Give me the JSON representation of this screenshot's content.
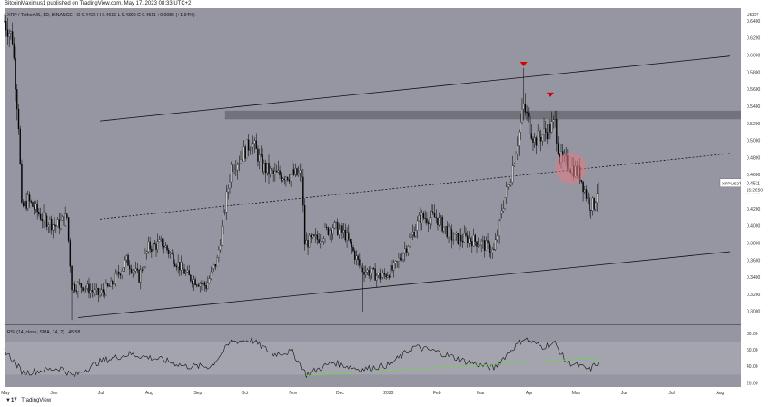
{
  "header": {
    "publisher": "BitcoinMaximus1 published on TradingView.com, May 17, 2023 08:33 UTC+2"
  },
  "legend": {
    "symbol": "XRP / TetherUS, 1D, BINANCE",
    "ohlc": "O 0.4426  H 0.4616  L 0.4390  C 0.4511  +0.0086 (+1.94%)"
  },
  "rsi_legend": {
    "label": "RSI (14, close, SMA, 14, 2)",
    "value": "45.58"
  },
  "price_label": {
    "symbol": "XRPUSDT",
    "price": "0.4511",
    "countdown": "15:26:50"
  },
  "footer": {
    "brand": "TradingView"
  },
  "colors": {
    "pane_bg": "#9596a1",
    "candle": "#000000",
    "resistance_zone": "#6b6c74",
    "marker": "#d50000",
    "circle": "#e57b83",
    "rsi_line": "#111111",
    "rsi_trend": "#6fd14e"
  },
  "chart_data": [
    {
      "type": "candlestick",
      "title": "",
      "y_axis_label": "USDT",
      "y_ticks": [
        "0.6400",
        "0.6200",
        "0.6000",
        "0.5800",
        "0.5600",
        "0.5400",
        "0.5200",
        "0.5000",
        "0.4800",
        "0.4600",
        "0.4400",
        "0.4200",
        "0.4000",
        "0.3800",
        "0.3600",
        "0.3400",
        "0.3200",
        "0.3000"
      ],
      "ylim": [
        0.285,
        0.655
      ],
      "x_ticks": [
        "May",
        "Jun",
        "Jul",
        "Aug",
        "Sep",
        "Oct",
        "Nov",
        "Dec",
        "2023",
        "Feb",
        "Mar",
        "Apr",
        "May",
        "Jun",
        "Jul",
        "Aug"
      ],
      "x_range": [
        "2022-05-01",
        "2023-08-15"
      ],
      "price_path": [
        [
          "2022-05-01",
          0.64
        ],
        [
          "2022-05-06",
          0.62
        ],
        [
          "2022-05-10",
          0.52
        ],
        [
          "2022-05-12",
          0.42
        ],
        [
          "2022-05-16",
          0.43
        ],
        [
          "2022-05-25",
          0.41
        ],
        [
          "2022-06-03",
          0.4
        ],
        [
          "2022-06-10",
          0.41
        ],
        [
          "2022-06-13",
          0.33
        ],
        [
          "2022-06-20",
          0.33
        ],
        [
          "2022-06-30",
          0.32
        ],
        [
          "2022-07-08",
          0.33
        ],
        [
          "2022-07-18",
          0.36
        ],
        [
          "2022-07-26",
          0.34
        ],
        [
          "2022-08-01",
          0.375
        ],
        [
          "2022-08-10",
          0.38
        ],
        [
          "2022-08-18",
          0.36
        ],
        [
          "2022-08-27",
          0.34
        ],
        [
          "2022-09-07",
          0.33
        ],
        [
          "2022-09-14",
          0.36
        ],
        [
          "2022-09-23",
          0.47
        ],
        [
          "2022-09-29",
          0.48
        ],
        [
          "2022-10-06",
          0.5
        ],
        [
          "2022-10-13",
          0.47
        ],
        [
          "2022-10-20",
          0.46
        ],
        [
          "2022-10-31",
          0.46
        ],
        [
          "2022-11-07",
          0.46
        ],
        [
          "2022-11-09",
          0.38
        ],
        [
          "2022-11-17",
          0.385
        ],
        [
          "2022-11-27",
          0.4
        ],
        [
          "2022-12-05",
          0.39
        ],
        [
          "2022-12-15",
          0.35
        ],
        [
          "2022-12-28",
          0.34
        ],
        [
          "2023-01-05",
          0.35
        ],
        [
          "2023-01-14",
          0.38
        ],
        [
          "2023-01-22",
          0.41
        ],
        [
          "2023-02-01",
          0.41
        ],
        [
          "2023-02-12",
          0.385
        ],
        [
          "2023-02-22",
          0.385
        ],
        [
          "2023-03-02",
          0.38
        ],
        [
          "2023-03-10",
          0.37
        ],
        [
          "2023-03-15",
          0.42
        ],
        [
          "2023-03-21",
          0.46
        ],
        [
          "2023-03-29",
          0.54
        ],
        [
          "2023-04-05",
          0.5
        ],
        [
          "2023-04-12",
          0.51
        ],
        [
          "2023-04-18",
          0.52
        ],
        [
          "2023-04-21",
          0.48
        ],
        [
          "2023-04-28",
          0.47
        ],
        [
          "2023-05-04",
          0.46
        ],
        [
          "2023-05-10",
          0.425
        ],
        [
          "2023-05-13",
          0.425
        ],
        [
          "2023-05-16",
          0.451
        ]
      ],
      "highlights": [
        [
          "2022-06-13",
          0.29
        ],
        [
          "2022-12-16",
          0.3
        ],
        [
          "2023-03-29",
          0.585
        ],
        [
          "2023-04-18",
          0.535
        ]
      ],
      "resistance_zone": {
        "from": 0.525,
        "to": 0.535,
        "start": "2022-09-19",
        "end": "2023-08-15"
      },
      "channel": {
        "upper": [
          [
            "2022-07-01",
            0.523
          ],
          [
            "2023-08-08",
            0.599
          ]
        ],
        "middle": [
          [
            "2022-07-01",
            0.408
          ],
          [
            "2023-08-08",
            0.485
          ]
        ],
        "lower": [
          [
            "2022-06-17",
            0.293
          ],
          [
            "2023-08-08",
            0.37
          ]
        ]
      },
      "markers": [
        {
          "date": "2023-03-29",
          "price": 0.588,
          "shape": "triangle-down"
        },
        {
          "date": "2023-04-15",
          "price": 0.552,
          "shape": "triangle-down"
        }
      ],
      "circle": {
        "date": "2023-04-28",
        "price": 0.468
      },
      "last_price": 0.4511
    },
    {
      "type": "line",
      "title": "RSI",
      "y_ticks": [
        "80.00",
        "60.00",
        "40.00",
        "20.00"
      ],
      "ylim": [
        15,
        90
      ],
      "x_range": [
        "2022-05-01",
        "2023-08-15"
      ],
      "rsi": [
        [
          "2022-05-01",
          60
        ],
        [
          "2022-05-13",
          32
        ],
        [
          "2022-06-06",
          38
        ],
        [
          "2022-06-14",
          28
        ],
        [
          "2022-07-01",
          46
        ],
        [
          "2022-07-20",
          55
        ],
        [
          "2022-08-10",
          48
        ],
        [
          "2022-08-25",
          40
        ],
        [
          "2022-09-10",
          40
        ],
        [
          "2022-09-23",
          70
        ],
        [
          "2022-10-06",
          72
        ],
        [
          "2022-10-20",
          55
        ],
        [
          "2022-11-01",
          58
        ],
        [
          "2022-11-10",
          30
        ],
        [
          "2022-11-27",
          45
        ],
        [
          "2022-12-15",
          36
        ],
        [
          "2023-01-02",
          42
        ],
        [
          "2023-01-18",
          64
        ],
        [
          "2023-02-01",
          58
        ],
        [
          "2023-02-20",
          46
        ],
        [
          "2023-03-10",
          38
        ],
        [
          "2023-03-20",
          58
        ],
        [
          "2023-03-29",
          74
        ],
        [
          "2023-04-10",
          64
        ],
        [
          "2023-04-18",
          68
        ],
        [
          "2023-04-25",
          46
        ],
        [
          "2023-05-10",
          36
        ],
        [
          "2023-05-16",
          45.58
        ]
      ],
      "trendline": [
        [
          "2022-11-10",
          29
        ],
        [
          "2023-05-16",
          50
        ]
      ],
      "band": [
        30,
        70
      ]
    }
  ]
}
